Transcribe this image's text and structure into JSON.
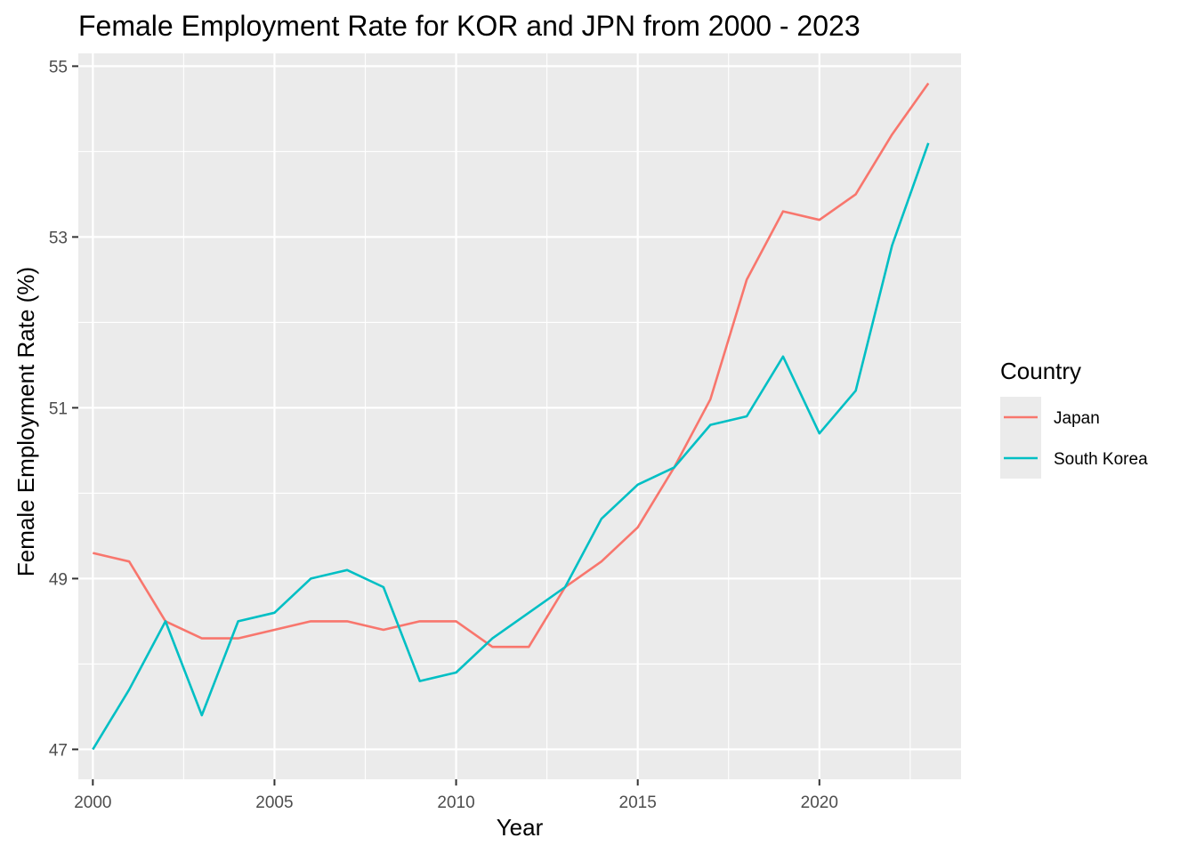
{
  "chart_data": {
    "type": "line",
    "title": "Female Employment Rate for KOR and JPN from 2000 - 2023",
    "xlabel": "Year",
    "ylabel": "Female Employment Rate (%)",
    "xlim": [
      1999.6,
      2023.9
    ],
    "ylim": [
      46.65,
      55.15
    ],
    "x_ticks": [
      2000,
      2005,
      2010,
      2015,
      2020
    ],
    "y_ticks": [
      47,
      49,
      51,
      53,
      55
    ],
    "grid": true,
    "legend": {
      "title": "Country",
      "position": "right"
    },
    "x": [
      2000,
      2001,
      2002,
      2003,
      2004,
      2005,
      2006,
      2007,
      2008,
      2009,
      2010,
      2011,
      2012,
      2013,
      2014,
      2015,
      2016,
      2017,
      2018,
      2019,
      2020,
      2021,
      2022,
      2023
    ],
    "series": [
      {
        "name": "Japan",
        "color": "#F8766D",
        "values": [
          49.3,
          49.2,
          48.5,
          48.3,
          48.3,
          48.4,
          48.5,
          48.5,
          48.4,
          48.5,
          48.5,
          48.2,
          48.2,
          48.9,
          49.2,
          49.6,
          50.3,
          51.1,
          52.5,
          53.3,
          53.2,
          53.5,
          54.2,
          54.8
        ]
      },
      {
        "name": "South Korea",
        "color": "#00BFC4",
        "values": [
          47.0,
          47.7,
          48.5,
          47.4,
          48.5,
          48.6,
          49.0,
          49.1,
          48.9,
          47.8,
          47.9,
          48.3,
          48.6,
          48.9,
          49.7,
          50.1,
          50.3,
          50.8,
          50.9,
          51.6,
          50.7,
          51.2,
          52.9,
          54.1
        ]
      }
    ]
  }
}
